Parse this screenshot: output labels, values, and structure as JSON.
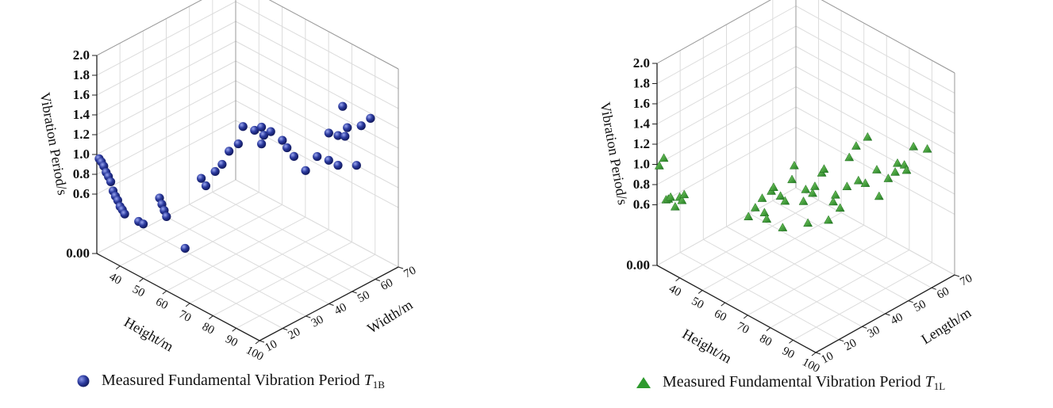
{
  "chart_data": [
    {
      "type": "scatter3d",
      "x_axis": {
        "label": "Height/m",
        "ticks": [
          40,
          50,
          60,
          70,
          80,
          90,
          100
        ],
        "range": [
          30,
          100
        ]
      },
      "y_axis": {
        "label": "Width/m",
        "ticks": [
          10,
          20,
          30,
          40,
          50,
          60,
          70
        ],
        "range": [
          10,
          70
        ]
      },
      "z_axis": {
        "label": "Vibration Period/s",
        "ticks": [
          "0.00",
          "0.6",
          "0.8",
          "1.0",
          "1.2",
          "1.4",
          "1.6",
          "1.8",
          "2.0"
        ],
        "range": [
          0,
          2.0
        ]
      },
      "marker": "sphere",
      "color": "#2b3a9e",
      "legend": {
        "prefix": "Measured Fundamental Vibration Period ",
        "symbol": "T",
        "subscript": "1B"
      },
      "grid": true,
      "points": [
        [
          31,
          10,
          0.97
        ],
        [
          32,
          10,
          0.95
        ],
        [
          33,
          10,
          0.92
        ],
        [
          34,
          10,
          0.87
        ],
        [
          35,
          10,
          0.84
        ],
        [
          36,
          10,
          0.8
        ],
        [
          37,
          10,
          0.72
        ],
        [
          38,
          10,
          0.68
        ],
        [
          39,
          10,
          0.65
        ],
        [
          40,
          10,
          0.6
        ],
        [
          41,
          10,
          0.58
        ],
        [
          42,
          10,
          0.55
        ],
        [
          48,
          10,
          0.55
        ],
        [
          50,
          10,
          0.55
        ],
        [
          55,
          12,
          0.85
        ],
        [
          56,
          12,
          0.8
        ],
        [
          57,
          12,
          0.75
        ],
        [
          58,
          12,
          0.7
        ],
        [
          66,
          12,
          0.48
        ],
        [
          60,
          25,
          0.95
        ],
        [
          62,
          25,
          0.9
        ],
        [
          63,
          28,
          1.02
        ],
        [
          64,
          30,
          1.08
        ],
        [
          65,
          32,
          1.2
        ],
        [
          66,
          35,
          1.25
        ],
        [
          68,
          35,
          1.45
        ],
        [
          70,
          38,
          1.4
        ],
        [
          71,
          40,
          1.42
        ],
        [
          72,
          40,
          1.35
        ],
        [
          73,
          38,
          1.3
        ],
        [
          70,
          45,
          1.3
        ],
        [
          72,
          48,
          1.2
        ],
        [
          74,
          48,
          1.15
        ],
        [
          75,
          50,
          1.05
        ],
        [
          80,
          55,
          1.05
        ],
        [
          82,
          58,
          1.0
        ],
        [
          84,
          60,
          0.95
        ],
        [
          85,
          55,
          1.35
        ],
        [
          86,
          58,
          1.3
        ],
        [
          87,
          60,
          1.28
        ],
        [
          88,
          60,
          1.38
        ],
        [
          89,
          65,
          1.35
        ],
        [
          90,
          68,
          1.4
        ],
        [
          84,
          62,
          1.52
        ],
        [
          78,
          52,
          0.92
        ],
        [
          86,
          66,
          0.9
        ]
      ]
    },
    {
      "type": "scatter3d",
      "x_axis": {
        "label": "Height/m",
        "ticks": [
          40,
          50,
          60,
          70,
          80,
          90,
          100
        ],
        "range": [
          30,
          100
        ]
      },
      "y_axis": {
        "label": "Length/m",
        "ticks": [
          10,
          20,
          30,
          40,
          50,
          60,
          70
        ],
        "range": [
          10,
          70
        ]
      },
      "z_axis": {
        "label": "Vibration Period/s",
        "ticks": [
          "0.00",
          "0.6",
          "0.8",
          "1.0",
          "1.2",
          "1.4",
          "1.6",
          "1.8",
          "2.0"
        ],
        "range": [
          0,
          2.0
        ]
      },
      "marker": "triangle",
      "color": "#2e9a2e",
      "legend": {
        "prefix": "Measured Fundamental Vibration Period ",
        "symbol": "T",
        "subscript": "1L"
      },
      "grid": true,
      "points": [
        [
          31,
          10,
          1.0
        ],
        [
          33,
          10,
          1.1
        ],
        [
          34,
          10,
          0.7
        ],
        [
          35,
          10,
          0.72
        ],
        [
          36,
          10,
          0.75
        ],
        [
          38,
          10,
          0.68
        ],
        [
          40,
          10,
          0.8
        ],
        [
          41,
          10,
          0.78
        ],
        [
          42,
          10,
          0.85
        ],
        [
          55,
          25,
          0.6
        ],
        [
          57,
          26,
          0.7
        ],
        [
          58,
          28,
          0.78
        ],
        [
          59,
          28,
          0.65
        ],
        [
          60,
          30,
          0.85
        ],
        [
          61,
          30,
          0.9
        ],
        [
          62,
          32,
          0.8
        ],
        [
          63,
          33,
          0.75
        ],
        [
          64,
          35,
          0.95
        ],
        [
          65,
          35,
          1.1
        ],
        [
          66,
          38,
          0.72
        ],
        [
          67,
          38,
          0.85
        ],
        [
          68,
          40,
          0.8
        ],
        [
          69,
          40,
          0.88
        ],
        [
          70,
          42,
          1.0
        ],
        [
          71,
          42,
          1.05
        ],
        [
          72,
          45,
          0.7
        ],
        [
          73,
          45,
          0.78
        ],
        [
          74,
          46,
          0.65
        ],
        [
          75,
          48,
          0.85
        ],
        [
          76,
          48,
          1.15
        ],
        [
          77,
          50,
          1.25
        ],
        [
          78,
          50,
          0.92
        ],
        [
          79,
          52,
          0.88
        ],
        [
          80,
          52,
          1.35
        ],
        [
          81,
          55,
          1.0
        ],
        [
          82,
          55,
          0.75
        ],
        [
          83,
          58,
          0.9
        ],
        [
          84,
          60,
          0.95
        ],
        [
          85,
          60,
          1.05
        ],
        [
          86,
          62,
          1.02
        ],
        [
          87,
          62,
          0.98
        ],
        [
          88,
          64,
          1.2
        ],
        [
          90,
          68,
          1.15
        ],
        [
          60,
          28,
          0.6
        ],
        [
          65,
          30,
          0.55
        ],
        [
          70,
          36,
          0.58
        ],
        [
          75,
          40,
          0.62
        ]
      ]
    }
  ]
}
